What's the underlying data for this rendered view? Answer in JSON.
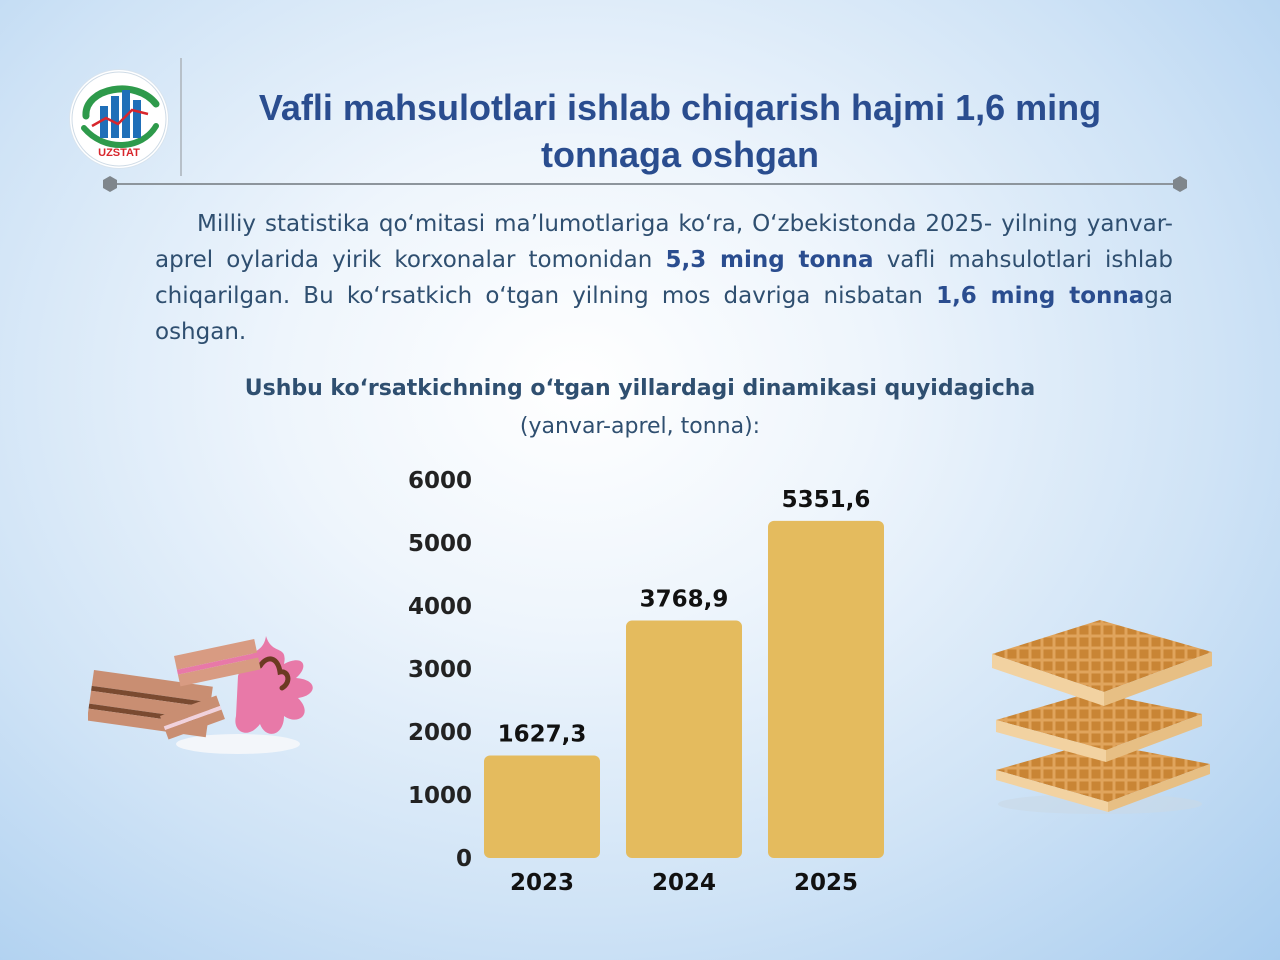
{
  "header": {
    "logo_text": "UZSTAT",
    "title": "Vafli mahsulotlari ishlab chiqarish hajmi 1,6 ming tonnaga oshgan"
  },
  "intro": {
    "part1": "Milliy statistika qo‘mitasi ma’lumotlariga ko‘ra, O‘zbekistonda 2025- yilning yanvar-aprel oylarida yirik korxonalar tomonidan ",
    "bold1": "5,3 ming tonna",
    "part2": " vafli mahsulotlari ishlab chiqarilgan. Bu ko‘rsatkich o‘tgan yilning mos davriga nisbatan ",
    "bold2": "1,6 ming tonna",
    "part3": "ga oshgan."
  },
  "chart_section": {
    "subtitle": "Ushbu ko‘rsatkichning o‘tgan yillardagi dinamikasi quyidagicha",
    "unit_note": "(yanvar-aprel, tonna):"
  },
  "colors": {
    "title": "#2a4d8f",
    "text": "#2f4f70",
    "bar": "#e4bb5e"
  },
  "chart_data": {
    "type": "bar",
    "categories": [
      "2023",
      "2024",
      "2025"
    ],
    "values": [
      1627.3,
      3768.9,
      5351.6
    ],
    "value_labels": [
      "1627,3",
      "3768,9",
      "5351,6"
    ],
    "yticks": [
      0,
      1000,
      2000,
      3000,
      4000,
      5000,
      6000
    ],
    "ylim": [
      0,
      6000
    ],
    "title": "Ushbu ko‘rsatkichning o‘tgan yillardagi dinamikasi quyidagicha",
    "xlabel": "",
    "ylabel": "tonna",
    "grid": false
  }
}
